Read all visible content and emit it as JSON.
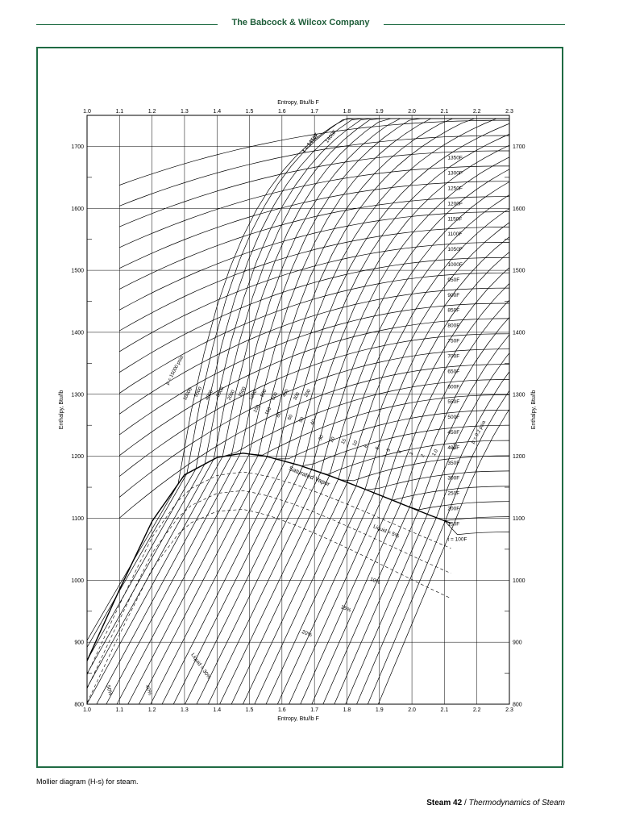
{
  "header": {
    "company": "The Babcock & Wilcox Company"
  },
  "caption": "Mollier diagram (H-s) for steam.",
  "footer": {
    "page": "Steam 42",
    "separator": "/",
    "chapter": "Thermodynamics of Steam"
  },
  "chart_data": {
    "type": "line",
    "xlabel": "Entropy, Btu/lb F",
    "ylabel": "Enthalpy, Btu/lb",
    "xlim": [
      1.0,
      2.3
    ],
    "ylim": [
      800,
      1750
    ],
    "xticks": [
      "1.0",
      "1.1",
      "1.2",
      "1.3",
      "1.4",
      "1.5",
      "1.6",
      "1.7",
      "1.8",
      "1.9",
      "2.0",
      "2.1",
      "2.2",
      "2.3"
    ],
    "yticks": [
      "800",
      "900",
      "1000",
      "1100",
      "1200",
      "1300",
      "1400",
      "1500",
      "1600",
      "1700"
    ],
    "grid": true,
    "saturated_vapor": {
      "label": "Saturated Vapor",
      "s": [
        1.0,
        1.1,
        1.2,
        1.3,
        1.4,
        1.48,
        1.55,
        1.65,
        1.75,
        1.85,
        1.95,
        2.05,
        2.12
      ],
      "h": [
        870,
        985,
        1095,
        1170,
        1198,
        1205,
        1200,
        1186,
        1168,
        1148,
        1127,
        1106,
        1092
      ]
    },
    "temperature_labels": [
      "t = 1450F",
      "1400F",
      "1350F",
      "1300F",
      "1250F",
      "1200F",
      "1150F",
      "1100F",
      "1050F",
      "1000F",
      "950F",
      "900F",
      "850F",
      "800F",
      "750F",
      "700F",
      "650F",
      "600F",
      "550F",
      "500F",
      "450F",
      "400F",
      "350F",
      "300F",
      "250F",
      "200F",
      "150F",
      "t = 100F"
    ],
    "temperature_values": [
      1450,
      1400,
      1350,
      1300,
      1250,
      1200,
      1150,
      1100,
      1050,
      1000,
      950,
      900,
      850,
      800,
      750,
      700,
      650,
      600,
      550,
      500,
      450,
      400,
      350,
      300,
      250,
      200,
      150,
      100
    ],
    "pressure_labels": [
      "p = 15000 psia",
      "10000",
      "5000",
      "4000",
      "3000",
      "2000",
      "1500",
      "1000",
      "800",
      "600",
      "400",
      "300",
      "200",
      "150",
      "100",
      "80",
      "60",
      "50",
      "40",
      "30",
      "20",
      "15",
      "10",
      "8",
      "6",
      "5",
      "4",
      "3",
      "2",
      "1.0",
      "0.5",
      "p = 0.2 psia"
    ],
    "pressure_values": [
      15000,
      10000,
      5000,
      4000,
      3000,
      2000,
      1500,
      1000,
      800,
      600,
      400,
      300,
      200,
      150,
      100,
      80,
      60,
      50,
      40,
      30,
      20,
      15,
      10,
      8,
      6,
      5,
      4,
      3,
      2,
      1.0,
      0.5,
      0.2
    ],
    "moisture_labels": [
      "Liquid = 5%",
      "10%",
      "15%",
      "20%",
      "Liquid = 30%",
      "40%",
      "50%"
    ],
    "moisture_values": [
      5,
      10,
      15,
      20,
      30,
      40,
      50
    ]
  }
}
